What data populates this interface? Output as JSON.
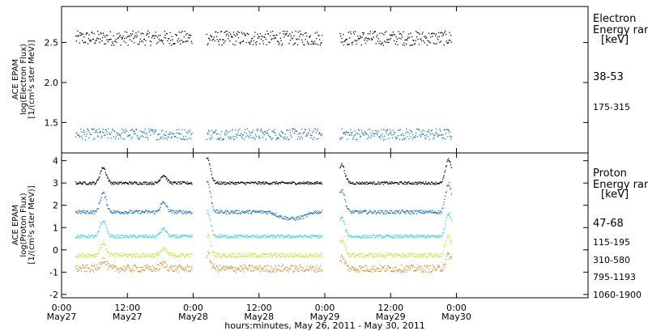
{
  "chart_data": [
    {
      "type": "scatter",
      "ylabel_lines": [
        "ACE EPAM",
        "log(Electron Flux)",
        "[1/(cm²s ster MeV)]"
      ],
      "yticks": [
        "1.5",
        "2.0",
        "2.5"
      ],
      "ylim": [
        1.12,
        2.95
      ],
      "legend_title": [
        "Electron",
        "Energy ran",
        "[keV]"
      ],
      "series": [
        {
          "name": "38-53",
          "color": "#000000",
          "level": 2.56,
          "spread": 0.09
        },
        {
          "name": "175-315",
          "color": "#1a70c8",
          "level": 1.36,
          "spread": 0.07
        }
      ]
    },
    {
      "type": "scatter",
      "ylabel_lines": [
        "ACE EPAM",
        "log(Proton Flux)",
        "[1/(cm²s ster MeV)]"
      ],
      "yticks": [
        "-2",
        "-1",
        "0",
        "1",
        "2",
        "3",
        "4"
      ],
      "ylim": [
        -2.15,
        4.35
      ],
      "legend_title": [
        "Proton",
        "Energy ran",
        "[keV]"
      ],
      "series": [
        {
          "name": "47-68",
          "color": "#000000",
          "level": 3.02,
          "spread": 0.06
        },
        {
          "name": "115-195",
          "color": "#1a70c8",
          "level": 1.72,
          "spread": 0.08
        },
        {
          "name": "310-580",
          "color": "#3ad6c8",
          "level": 0.62,
          "spread": 0.07
        },
        {
          "name": "795-1193",
          "color": "#d2e030",
          "level": -0.22,
          "spread": 0.1
        },
        {
          "name": "1060-1900",
          "color": "#e08a2a",
          "level": -0.82,
          "spread": 0.16
        }
      ]
    }
  ],
  "xaxis": {
    "range_hours": [
      0,
      96
    ],
    "ticks": [
      {
        "time": "0:00",
        "date": "May27",
        "h": 0
      },
      {
        "time": "12:00",
        "date": "May27",
        "h": 12
      },
      {
        "time": "0:00",
        "date": "May28",
        "h": 24
      },
      {
        "time": "12:00",
        "date": "May28",
        "h": 36
      },
      {
        "time": "0:00",
        "date": "May29",
        "h": 48
      },
      {
        "time": "12:00",
        "date": "May29",
        "h": 60
      },
      {
        "time": "0:00",
        "date": "May30",
        "h": 72
      }
    ],
    "data_segments_hours": [
      [
        2.5,
        23.8
      ],
      [
        26.4,
        47.5
      ],
      [
        50.7,
        71.1
      ]
    ],
    "label": "hours:minutes, May 26, 2011 - May 30, 2011"
  }
}
